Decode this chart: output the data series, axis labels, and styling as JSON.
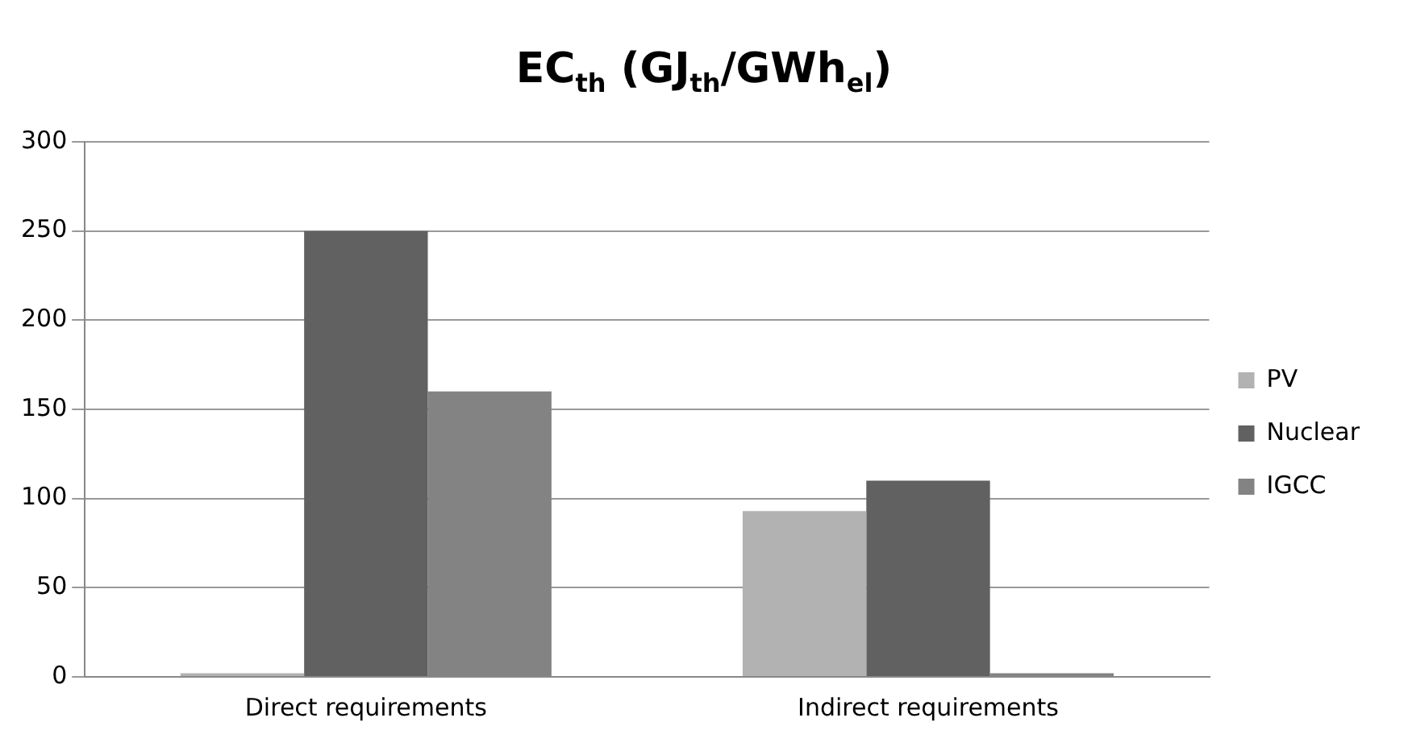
{
  "chart_data": {
    "type": "bar",
    "title": "EC$_{th}$ (GJ$_{th}$/GWh$_{el}$)",
    "categories": [
      "Direct requirements",
      "Indirect requirements"
    ],
    "series": [
      {
        "name": "PV",
        "color": "#b2b2b2",
        "values": [
          2,
          93
        ]
      },
      {
        "name": "Nuclear",
        "color": "#616161",
        "values": [
          250,
          110
        ]
      },
      {
        "name": "IGCC",
        "color": "#838383",
        "values": [
          160,
          2
        ]
      }
    ],
    "ylim": [
      0,
      300
    ],
    "yticks": [
      0,
      50,
      100,
      150,
      200,
      250,
      300
    ],
    "grid": "y",
    "legend": "right"
  }
}
